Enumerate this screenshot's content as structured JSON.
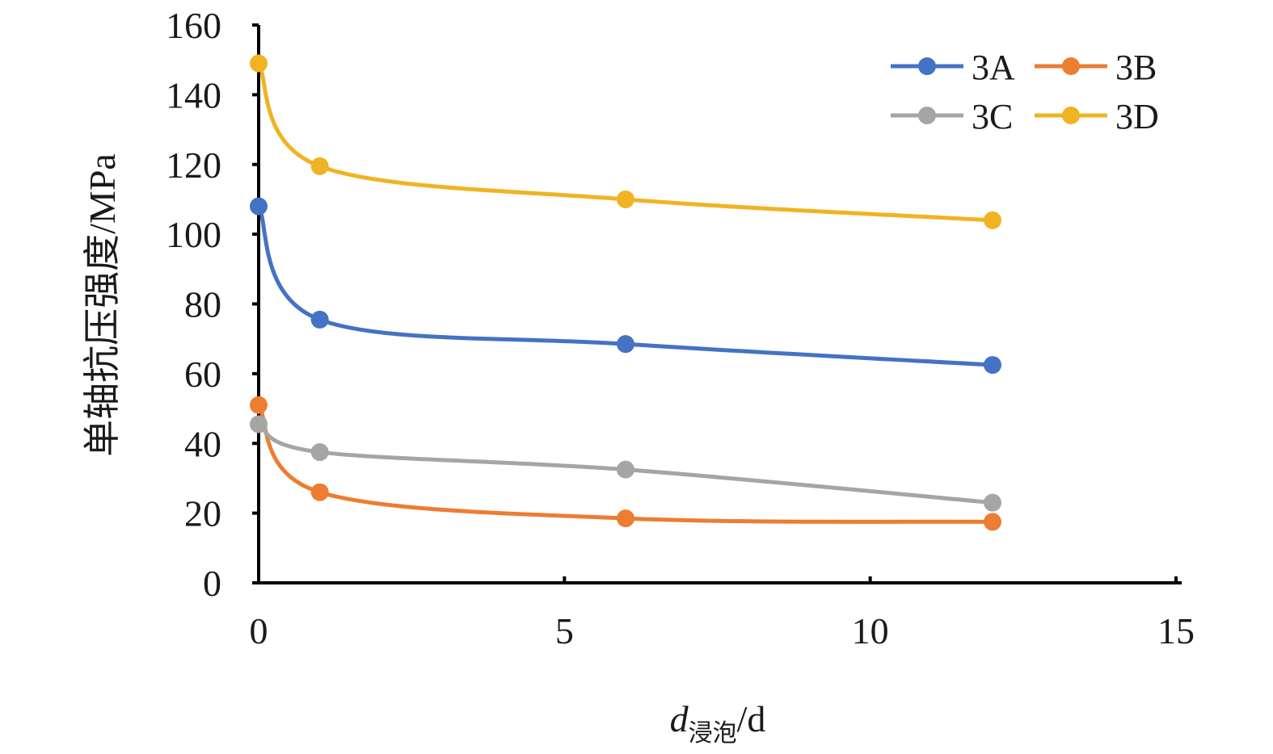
{
  "chart_data": {
    "type": "line",
    "title": "",
    "xlabel": {
      "main": "d",
      "subscript": "浸泡",
      "unit": "/d"
    },
    "ylabel": "单轴抗压强度/MPa",
    "x": [
      0,
      1,
      6,
      12
    ],
    "xlim": [
      0,
      15
    ],
    "ylim": [
      0,
      160
    ],
    "xticks": [
      0,
      5,
      10,
      15
    ],
    "yticks": [
      0,
      20,
      40,
      60,
      80,
      100,
      120,
      140,
      160
    ],
    "grid": false,
    "legend_position": "top-right",
    "series": [
      {
        "name": "3A",
        "values": [
          108,
          75.5,
          68.5,
          62.5
        ],
        "color": "#4472C4"
      },
      {
        "name": "3B",
        "values": [
          51,
          26,
          18.5,
          17.5
        ],
        "color": "#ED7D31"
      },
      {
        "name": "3C",
        "values": [
          45.5,
          37.5,
          32.5,
          23
        ],
        "color": "#A5A5A5"
      },
      {
        "name": "3D",
        "values": [
          149,
          119.5,
          110,
          104
        ],
        "color": "#F0B323"
      }
    ]
  }
}
